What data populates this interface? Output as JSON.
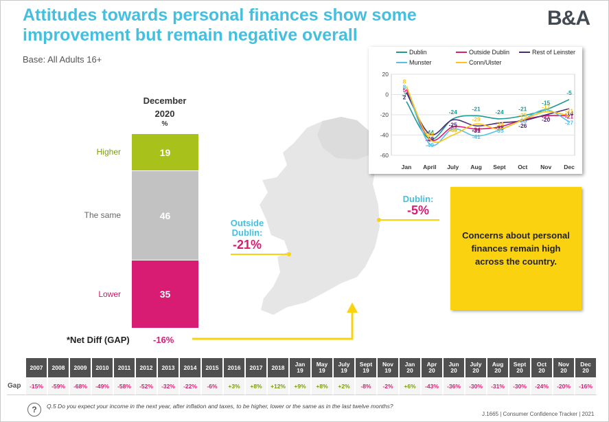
{
  "title": "Attitudes towards personal finances show some improvement but remain negative overall",
  "base": "Base: All Adults 16+",
  "logo": "B&A",
  "stack": {
    "heading_line1": "December",
    "heading_line2": "2020",
    "heading_unit": "%",
    "segments": [
      {
        "label": "Higher",
        "value": 19,
        "color": "#a9c21b",
        "label_color": "#7a9c0a"
      },
      {
        "label": "The same",
        "value": 46,
        "color": "#c2c2c2",
        "label_color": "#666666"
      },
      {
        "label": "Lower",
        "value": 35,
        "color": "#d81b73",
        "label_color": "#c81a68"
      }
    ]
  },
  "net_diff": {
    "label": "*Net Diff (GAP)",
    "value": "-16%"
  },
  "regions": {
    "dublin_label": "Dublin:",
    "dublin_value": "-5%",
    "outside_label_1": "Outside",
    "outside_label_2": "Dublin:",
    "outside_value": "-21%"
  },
  "callout": "Concerns about personal finances remain high across the country.",
  "chart_data": {
    "type": "line",
    "categories": [
      "Jan",
      "April",
      "July",
      "Aug",
      "Sept",
      "Oct",
      "Nov",
      "Dec"
    ],
    "ylim": [
      -60,
      20
    ],
    "yticks": [
      20,
      0,
      -20,
      -40,
      -60
    ],
    "series": [
      {
        "name": "Dublin",
        "color": "#1d9a96",
        "values": [
          -7,
          -44,
          -24,
          -21,
          -24,
          -21,
          -15,
          -5
        ]
      },
      {
        "name": "Outside Dublin",
        "color": "#d81b73",
        "values": [
          5,
          -44,
          -32,
          -34,
          -32,
          -25,
          -21,
          -21
        ]
      },
      {
        "name": "Rest of Leinster",
        "color": "#4a2a73",
        "values": [
          2,
          -39,
          -25,
          -31,
          -28,
          -26,
          -20,
          -14
        ]
      },
      {
        "name": "Munster",
        "color": "#55c1e4",
        "values": [
          8,
          -49,
          -34,
          -41,
          -35,
          -25,
          -15,
          -27
        ]
      },
      {
        "name": "Conn/Ulster",
        "color": "#fbc412",
        "values": [
          8,
          -44,
          -40,
          -29,
          -34,
          -25,
          -17,
          -21
        ]
      }
    ],
    "legend_position": "top"
  },
  "gap_table": {
    "row_label": "Gap",
    "periods": [
      {
        "l1": "2007",
        "l2": "",
        "value": "-15%"
      },
      {
        "l1": "2008",
        "l2": "",
        "value": "-59%"
      },
      {
        "l1": "2009",
        "l2": "",
        "value": "-68%"
      },
      {
        "l1": "2010",
        "l2": "",
        "value": "-49%"
      },
      {
        "l1": "2011",
        "l2": "",
        "value": "-58%"
      },
      {
        "l1": "2012",
        "l2": "",
        "value": "-52%"
      },
      {
        "l1": "2013",
        "l2": "",
        "value": "-32%"
      },
      {
        "l1": "2014",
        "l2": "",
        "value": "-22%"
      },
      {
        "l1": "2015",
        "l2": "",
        "value": "-6%"
      },
      {
        "l1": "2016",
        "l2": "",
        "value": "+3%"
      },
      {
        "l1": "2017",
        "l2": "",
        "value": "+8%"
      },
      {
        "l1": "2018",
        "l2": "",
        "value": "+12%"
      },
      {
        "l1": "Jan",
        "l2": "19",
        "value": "+9%"
      },
      {
        "l1": "May",
        "l2": "19",
        "value": "+8%"
      },
      {
        "l1": "July",
        "l2": "19",
        "value": "+2%"
      },
      {
        "l1": "Sept",
        "l2": "19",
        "value": "-8%"
      },
      {
        "l1": "Nov",
        "l2": "19",
        "value": "-2%"
      },
      {
        "l1": "Jan",
        "l2": "20",
        "value": "+6%"
      },
      {
        "l1": "Apr",
        "l2": "20",
        "value": "-43%"
      },
      {
        "l1": "Jun",
        "l2": "20",
        "value": "-36%"
      },
      {
        "l1": "July",
        "l2": "20",
        "value": "-30%"
      },
      {
        "l1": "Aug",
        "l2": "20",
        "value": "-31%"
      },
      {
        "l1": "Sept",
        "l2": "20",
        "value": "-30%"
      },
      {
        "l1": "Oct",
        "l2": "20",
        "value": "-24%"
      },
      {
        "l1": "Nov",
        "l2": "20",
        "value": "-20%"
      },
      {
        "l1": "Dec",
        "l2": "20",
        "value": "-16%"
      }
    ],
    "positive_color": "#7a9c0a",
    "negative_color": "#d81b73"
  },
  "question": "Q.5  Do you expect your income in the next year, after inflation and taxes, to be higher, lower or the same as in the last twelve months?",
  "footer": "J.1665  |  Consumer Confidence Tracker  |  2021",
  "colors": {
    "accent": "#44bfe0",
    "yellow": "#fbd20f",
    "map": "#e6e6e6"
  }
}
